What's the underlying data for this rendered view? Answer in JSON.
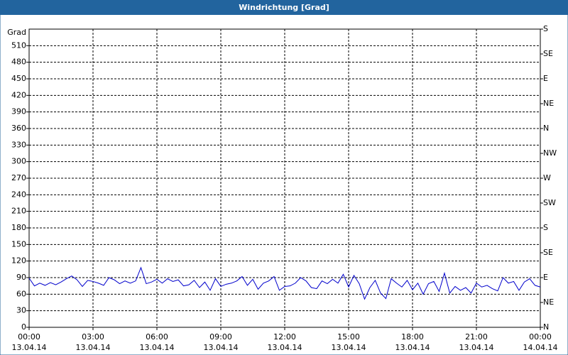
{
  "chart_data": {
    "type": "line",
    "title": "Windrichtung [Grad]",
    "ylabel": "Grad",
    "x": [
      0,
      0.25,
      0.5,
      0.75,
      1,
      1.25,
      1.5,
      1.75,
      2,
      2.25,
      2.5,
      2.75,
      3,
      3.25,
      3.5,
      3.75,
      4,
      4.25,
      4.5,
      4.75,
      5,
      5.25,
      5.5,
      5.75,
      6,
      6.25,
      6.5,
      6.75,
      7,
      7.25,
      7.5,
      7.75,
      8,
      8.25,
      8.5,
      8.75,
      9,
      9.25,
      9.5,
      9.75,
      10,
      10.25,
      10.5,
      10.75,
      11,
      11.25,
      11.5,
      11.75,
      12,
      12.25,
      12.5,
      12.75,
      13,
      13.25,
      13.5,
      13.75,
      14,
      14.25,
      14.5,
      14.75,
      15,
      15.25,
      15.5,
      15.75,
      16,
      16.25,
      16.5,
      16.75,
      17,
      17.25,
      17.5,
      17.75,
      18,
      18.25,
      18.5,
      18.75,
      19,
      19.25,
      19.5,
      19.75,
      20,
      20.25,
      20.5,
      20.75,
      21,
      21.25,
      21.5,
      21.75,
      22,
      22.25,
      22.5,
      22.75,
      23,
      23.25,
      23.5,
      23.75,
      24
    ],
    "series": [
      {
        "name": "Windrichtung",
        "color": "#0000cc",
        "values": [
          89,
          75,
          80,
          76,
          81,
          77,
          82,
          88,
          93,
          86,
          74,
          85,
          83,
          80,
          76,
          90,
          86,
          79,
          84,
          80,
          84,
          108,
          79,
          82,
          87,
          80,
          88,
          83,
          86,
          75,
          77,
          85,
          72,
          82,
          67,
          88,
          74,
          78,
          80,
          84,
          92,
          76,
          87,
          69,
          80,
          84,
          92,
          67,
          74,
          75,
          80,
          90,
          84,
          72,
          70,
          84,
          79,
          87,
          80,
          96,
          73,
          94,
          79,
          51,
          72,
          85,
          62,
          52,
          88,
          80,
          73,
          85,
          68,
          80,
          60,
          79,
          83,
          65,
          98,
          62,
          74,
          67,
          72,
          62,
          80,
          73,
          76,
          70,
          66,
          90,
          80,
          83,
          67,
          82,
          88,
          76,
          73
        ]
      }
    ],
    "xlim": [
      0,
      24
    ],
    "xticks": [
      {
        "value": 0,
        "label": "00:00",
        "date": "13.04.14"
      },
      {
        "value": 3,
        "label": "03:00",
        "date": "13.04.14"
      },
      {
        "value": 6,
        "label": "06:00",
        "date": "13.04.14"
      },
      {
        "value": 9,
        "label": "09:00",
        "date": "13.04.14"
      },
      {
        "value": 12,
        "label": "12:00",
        "date": "13.04.14"
      },
      {
        "value": 15,
        "label": "15:00",
        "date": "13.04.14"
      },
      {
        "value": 18,
        "label": "18:00",
        "date": "13.04.14"
      },
      {
        "value": 21,
        "label": "21:00",
        "date": "13.04.14"
      },
      {
        "value": 24,
        "label": "00:00",
        "date": "14.04.14"
      }
    ],
    "ylim": [
      0,
      540
    ],
    "yticks": [
      0,
      30,
      60,
      90,
      120,
      150,
      180,
      210,
      240,
      270,
      300,
      330,
      360,
      390,
      420,
      450,
      480,
      510
    ],
    "y2lim": [
      0,
      540
    ],
    "y2ticks": [
      {
        "value": 0,
        "label": "N"
      },
      {
        "value": 45,
        "label": "NE"
      },
      {
        "value": 90,
        "label": "E"
      },
      {
        "value": 135,
        "label": "SE"
      },
      {
        "value": 180,
        "label": "S"
      },
      {
        "value": 225,
        "label": "SW"
      },
      {
        "value": 270,
        "label": "W"
      },
      {
        "value": 315,
        "label": "NW"
      },
      {
        "value": 360,
        "label": "N"
      },
      {
        "value": 405,
        "label": "NE"
      },
      {
        "value": 450,
        "label": "E"
      },
      {
        "value": 495,
        "label": "SE"
      },
      {
        "value": 540,
        "label": "S"
      }
    ],
    "grid": true
  }
}
